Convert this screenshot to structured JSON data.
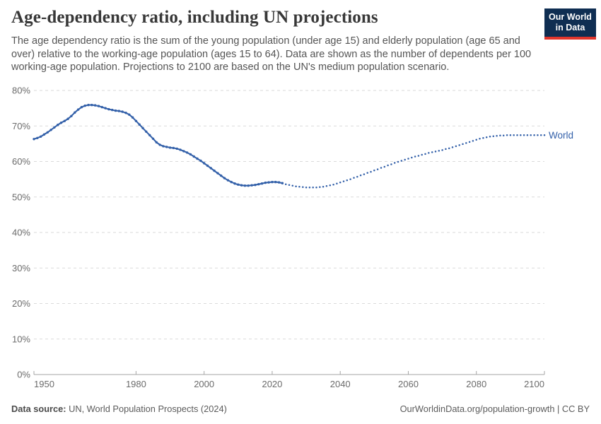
{
  "header": {
    "title": "Age-dependency ratio, including UN projections",
    "subtitle": "The age dependency ratio is the sum of the young population (under age 15) and elderly population (age 65 and over) relative to the working-age population (ages 15 to 64). Data are shown as the number of dependents per 100 working-age population. Projections to 2100 are based on the UN's medium population scenario.",
    "logo": {
      "line1": "Our World",
      "line2": "in Data",
      "bg_color": "#0f2e52",
      "accent_color": "#e0362c"
    }
  },
  "chart_data": {
    "type": "line",
    "title": "Age-dependency ratio, including UN projections",
    "xlabel": "",
    "ylabel": "",
    "xlim": [
      1950,
      2100
    ],
    "ylim": [
      0,
      80
    ],
    "x_ticks": [
      1950,
      1980,
      2000,
      2020,
      2040,
      2060,
      2080,
      2100
    ],
    "y_ticks": [
      0,
      10,
      20,
      30,
      40,
      50,
      60,
      70,
      80
    ],
    "y_tick_suffix": "%",
    "grid": "horizontal-dashed",
    "legend_position": "end-of-line",
    "end_label": "World",
    "colors": {
      "line": "#3360a9",
      "grid": "#dadada",
      "axis": "#a5a5a5",
      "tick_text": "#6b6b6b"
    },
    "series": [
      {
        "name": "World (estimates)",
        "style": "solid-with-markers",
        "points": [
          [
            1950,
            66.3
          ],
          [
            1951,
            66.6
          ],
          [
            1952,
            67.0
          ],
          [
            1953,
            67.6
          ],
          [
            1954,
            68.2
          ],
          [
            1955,
            68.9
          ],
          [
            1956,
            69.6
          ],
          [
            1957,
            70.3
          ],
          [
            1958,
            70.9
          ],
          [
            1959,
            71.4
          ],
          [
            1960,
            72.0
          ],
          [
            1961,
            72.8
          ],
          [
            1962,
            73.8
          ],
          [
            1963,
            74.6
          ],
          [
            1964,
            75.3
          ],
          [
            1965,
            75.7
          ],
          [
            1966,
            75.9
          ],
          [
            1967,
            75.9
          ],
          [
            1968,
            75.8
          ],
          [
            1969,
            75.6
          ],
          [
            1970,
            75.3
          ],
          [
            1971,
            75.0
          ],
          [
            1972,
            74.7
          ],
          [
            1973,
            74.5
          ],
          [
            1974,
            74.3
          ],
          [
            1975,
            74.2
          ],
          [
            1976,
            74.0
          ],
          [
            1977,
            73.7
          ],
          [
            1978,
            73.2
          ],
          [
            1979,
            72.4
          ],
          [
            1980,
            71.4
          ],
          [
            1981,
            70.4
          ],
          [
            1982,
            69.4
          ],
          [
            1983,
            68.4
          ],
          [
            1984,
            67.4
          ],
          [
            1985,
            66.4
          ],
          [
            1986,
            65.4
          ],
          [
            1987,
            64.7
          ],
          [
            1988,
            64.3
          ],
          [
            1989,
            64.1
          ],
          [
            1990,
            63.9
          ],
          [
            1991,
            63.8
          ],
          [
            1992,
            63.6
          ],
          [
            1993,
            63.3
          ],
          [
            1994,
            62.9
          ],
          [
            1995,
            62.5
          ],
          [
            1996,
            62.0
          ],
          [
            1997,
            61.4
          ],
          [
            1998,
            60.8
          ],
          [
            1999,
            60.2
          ],
          [
            2000,
            59.5
          ],
          [
            2001,
            58.8
          ],
          [
            2002,
            58.1
          ],
          [
            2003,
            57.4
          ],
          [
            2004,
            56.7
          ],
          [
            2005,
            56.0
          ],
          [
            2006,
            55.3
          ],
          [
            2007,
            54.7
          ],
          [
            2008,
            54.2
          ],
          [
            2009,
            53.8
          ],
          [
            2010,
            53.5
          ],
          [
            2011,
            53.3
          ],
          [
            2012,
            53.2
          ],
          [
            2013,
            53.2
          ],
          [
            2014,
            53.3
          ],
          [
            2015,
            53.4
          ],
          [
            2016,
            53.6
          ],
          [
            2017,
            53.8
          ],
          [
            2018,
            54.0
          ],
          [
            2019,
            54.1
          ],
          [
            2020,
            54.2
          ],
          [
            2021,
            54.2
          ],
          [
            2022,
            54.1
          ],
          [
            2023,
            53.9
          ]
        ]
      },
      {
        "name": "World (UN medium projection)",
        "style": "dotted",
        "points": [
          [
            2024,
            53.6
          ],
          [
            2025,
            53.4
          ],
          [
            2026,
            53.2
          ],
          [
            2027,
            53.0
          ],
          [
            2028,
            52.9
          ],
          [
            2029,
            52.8
          ],
          [
            2030,
            52.7
          ],
          [
            2031,
            52.7
          ],
          [
            2032,
            52.7
          ],
          [
            2033,
            52.7
          ],
          [
            2034,
            52.8
          ],
          [
            2035,
            52.9
          ],
          [
            2036,
            53.1
          ],
          [
            2037,
            53.3
          ],
          [
            2038,
            53.5
          ],
          [
            2039,
            53.8
          ],
          [
            2040,
            54.1
          ],
          [
            2041,
            54.4
          ],
          [
            2042,
            54.7
          ],
          [
            2043,
            55.0
          ],
          [
            2044,
            55.4
          ],
          [
            2045,
            55.7
          ],
          [
            2046,
            56.1
          ],
          [
            2047,
            56.4
          ],
          [
            2048,
            56.8
          ],
          [
            2049,
            57.1
          ],
          [
            2050,
            57.5
          ],
          [
            2051,
            57.8
          ],
          [
            2052,
            58.2
          ],
          [
            2053,
            58.5
          ],
          [
            2054,
            58.9
          ],
          [
            2055,
            59.2
          ],
          [
            2056,
            59.6
          ],
          [
            2057,
            59.9
          ],
          [
            2058,
            60.2
          ],
          [
            2059,
            60.5
          ],
          [
            2060,
            60.8
          ],
          [
            2061,
            61.1
          ],
          [
            2062,
            61.4
          ],
          [
            2063,
            61.6
          ],
          [
            2064,
            61.9
          ],
          [
            2065,
            62.1
          ],
          [
            2066,
            62.4
          ],
          [
            2067,
            62.6
          ],
          [
            2068,
            62.8
          ],
          [
            2069,
            63.0
          ],
          [
            2070,
            63.2
          ],
          [
            2071,
            63.5
          ],
          [
            2072,
            63.7
          ],
          [
            2073,
            64.0
          ],
          [
            2074,
            64.3
          ],
          [
            2075,
            64.6
          ],
          [
            2076,
            64.9
          ],
          [
            2077,
            65.2
          ],
          [
            2078,
            65.5
          ],
          [
            2079,
            65.8
          ],
          [
            2080,
            66.1
          ],
          [
            2081,
            66.4
          ],
          [
            2082,
            66.6
          ],
          [
            2083,
            66.8
          ],
          [
            2084,
            67.0
          ],
          [
            2085,
            67.1
          ],
          [
            2086,
            67.2
          ],
          [
            2087,
            67.3
          ],
          [
            2088,
            67.3
          ],
          [
            2089,
            67.4
          ],
          [
            2090,
            67.4
          ],
          [
            2091,
            67.4
          ],
          [
            2092,
            67.4
          ],
          [
            2093,
            67.4
          ],
          [
            2094,
            67.4
          ],
          [
            2095,
            67.4
          ],
          [
            2096,
            67.4
          ],
          [
            2097,
            67.4
          ],
          [
            2098,
            67.4
          ],
          [
            2099,
            67.4
          ],
          [
            2100,
            67.4
          ]
        ]
      }
    ]
  },
  "footer": {
    "datasource_label": "Data source:",
    "datasource_value": " UN, World Population Prospects (2024)",
    "credit": "OurWorldinData.org/population-growth | CC BY"
  }
}
